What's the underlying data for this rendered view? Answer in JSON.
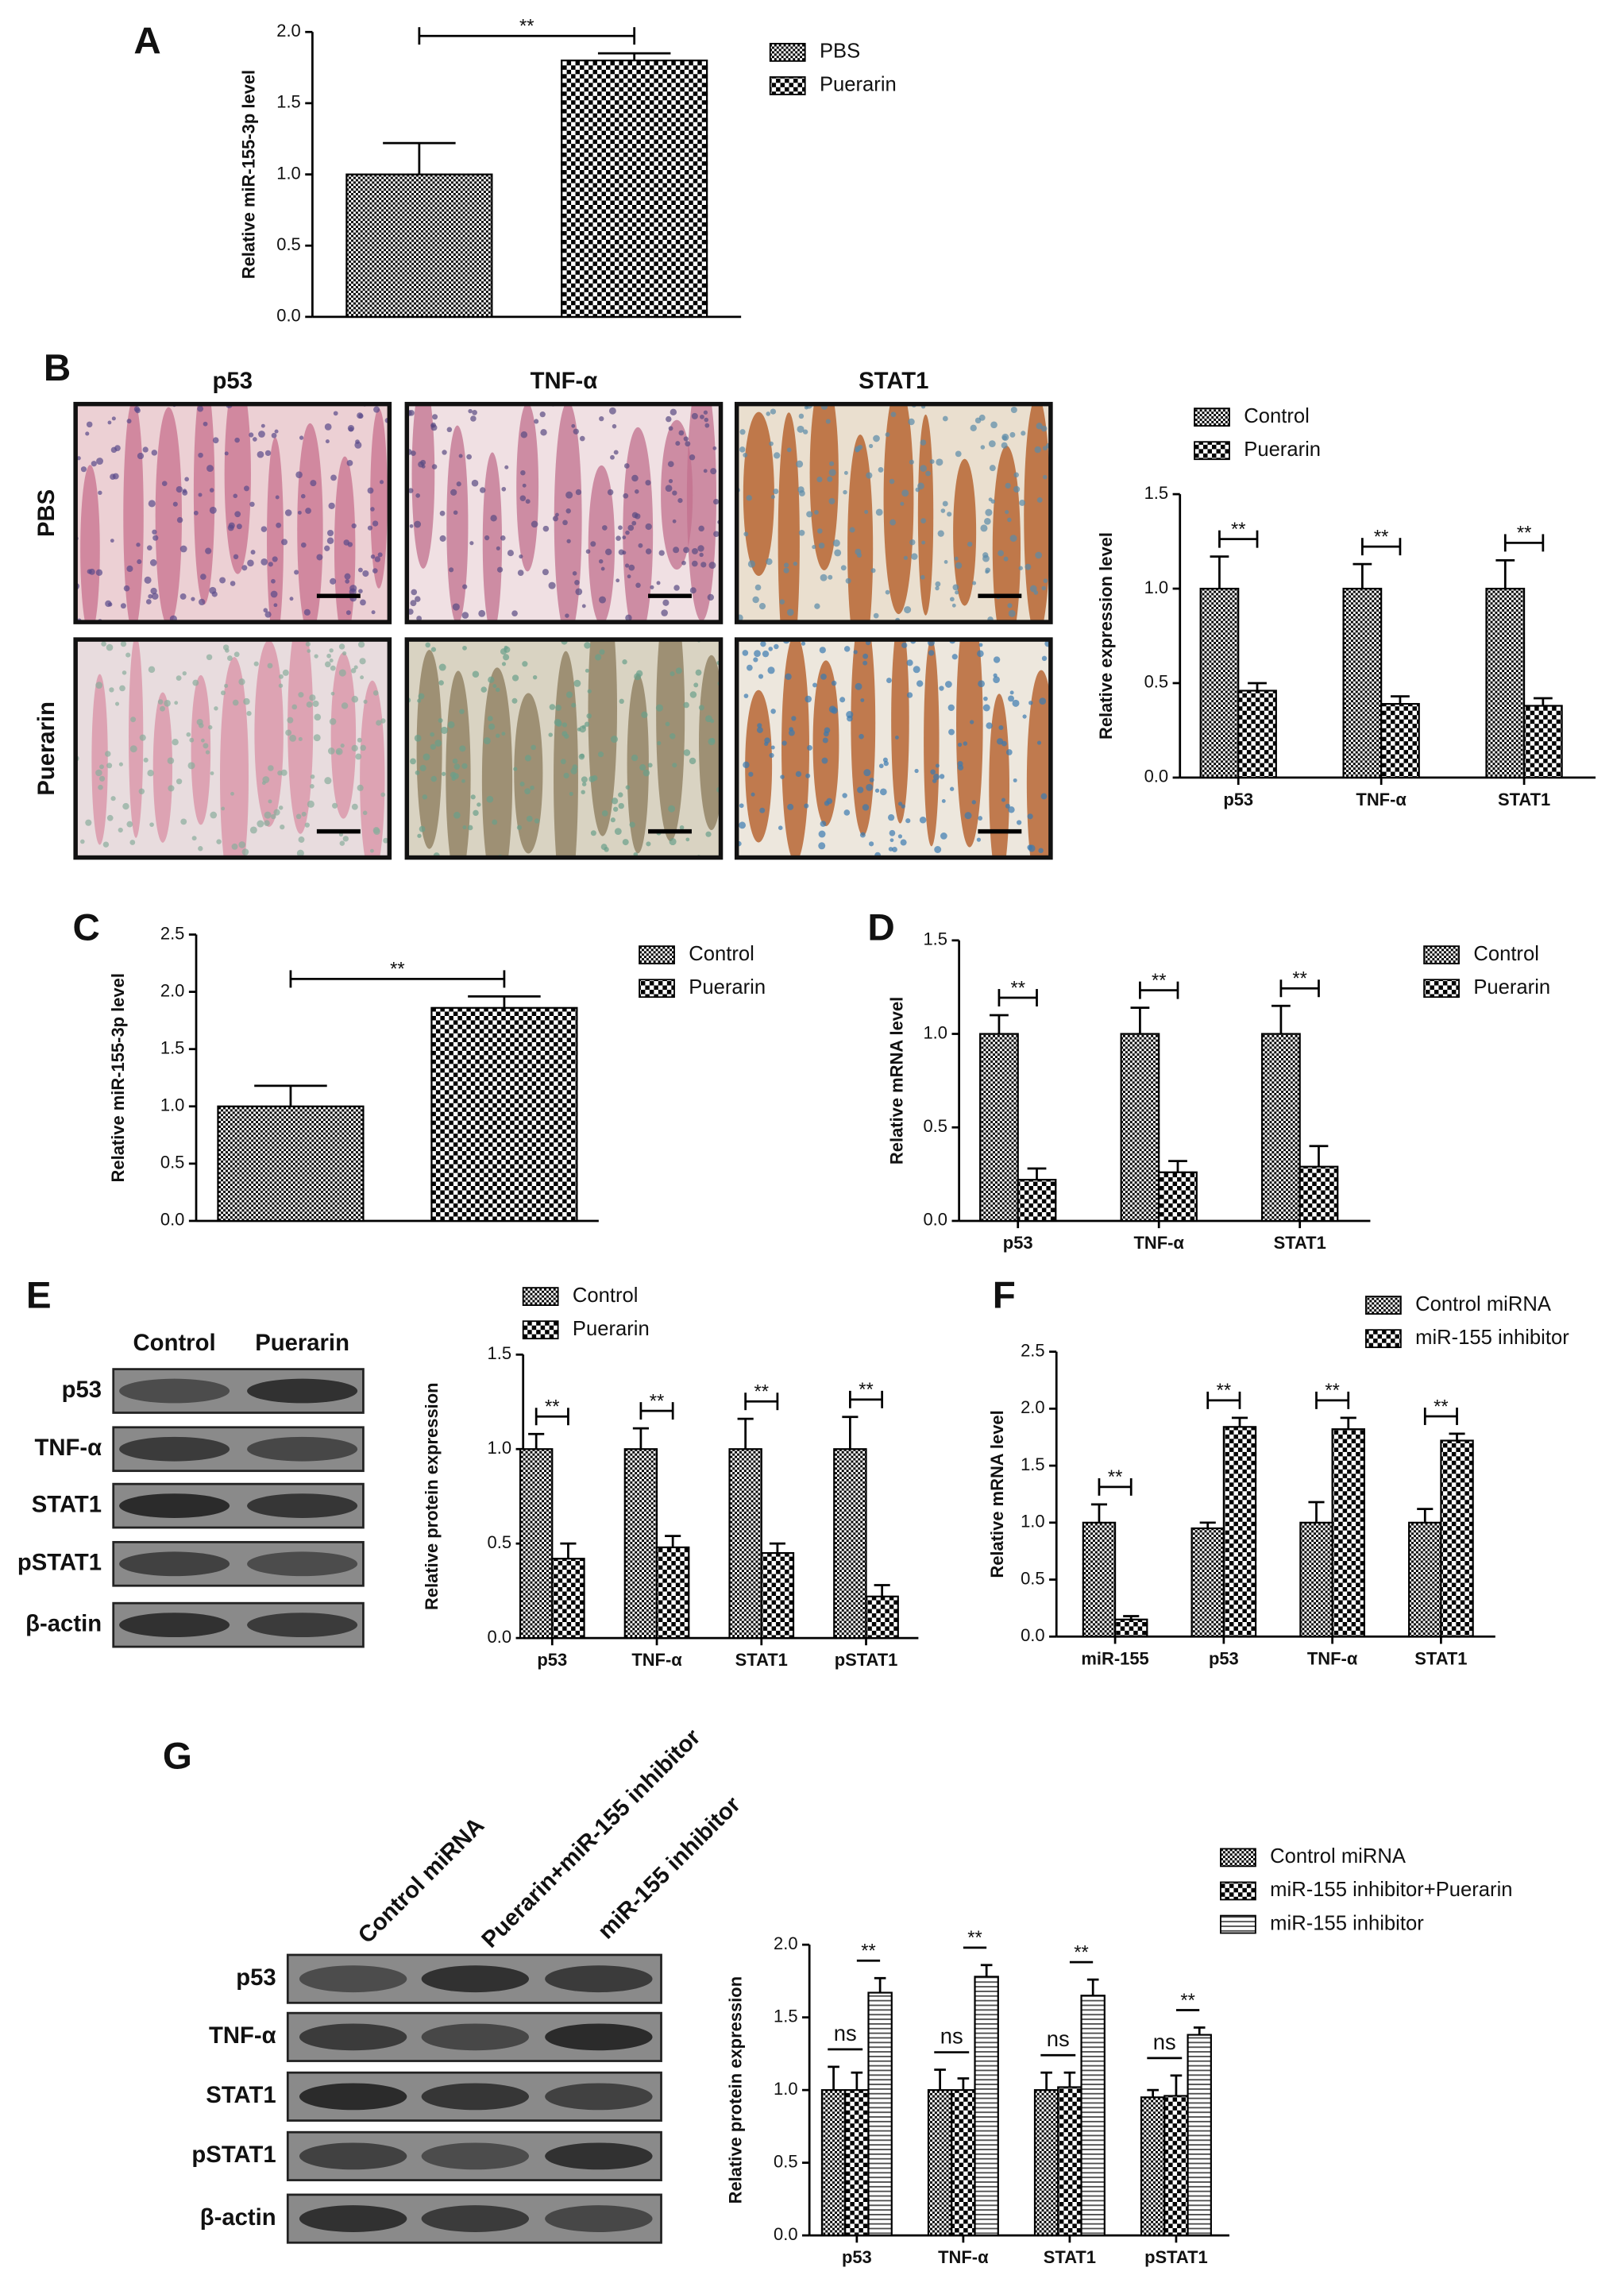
{
  "images": {
    "label": "B",
    "columns": [
      "p53",
      "TNF-α",
      "STAT1"
    ],
    "rows": [
      "PBS",
      "Puerarin"
    ]
  },
  "blot_e": {
    "label": "E",
    "columns": [
      "Control",
      "Puerarin"
    ],
    "rows": [
      "p53",
      "TNF-α",
      "STAT1",
      "pSTAT1",
      "β-actin"
    ]
  },
  "blot_g": {
    "label": "G",
    "columns": [
      "Control miRNA",
      "Puerarin+miR-155 inhibitor",
      "miR-155 inhibitor"
    ],
    "rows": [
      "p53",
      "TNF-α",
      "STAT1",
      "pSTAT1",
      "β-actin"
    ]
  },
  "chart_data": [
    {
      "type": "bar",
      "label": "A",
      "y_label": "Relative miR-155-3p level",
      "categories": [
        null
      ],
      "series": [
        {
          "name": "PBS",
          "color": "#000000",
          "pattern": "checker",
          "values": [
            1.0
          ],
          "errors": [
            0.22
          ]
        },
        {
          "name": "Puerarin",
          "color": "#000000",
          "pattern": "checker-large",
          "values": [
            1.8
          ],
          "errors": [
            0.05
          ]
        }
      ],
      "significance": [
        "**"
      ],
      "ylim": [
        0,
        2
      ],
      "yticks": [
        {
          "value": 0,
          "label": "0.0"
        },
        0.5,
        {
          "value": 1,
          "label": "1.0"
        },
        1.5,
        {
          "value": 2,
          "label": "2.0"
        }
      ],
      "grid": false
    },
    {
      "type": "bar",
      "y_label": "Relative expression level",
      "categories": [
        "p53",
        "TNF-α",
        "STAT1"
      ],
      "series": [
        {
          "name": "Control",
          "color": "#000000",
          "pattern": "checker",
          "values": [
            1.0,
            1.0,
            1.0
          ],
          "errors": [
            0.17,
            0.13,
            0.15
          ]
        },
        {
          "name": "Puerarin",
          "color": "#000000",
          "pattern": "checker-large",
          "values": [
            0.46,
            0.39,
            0.38
          ],
          "errors": [
            0.04,
            0.04,
            0.04
          ]
        }
      ],
      "significance": [
        "**",
        "**",
        "**"
      ],
      "ylim": [
        0,
        1.5
      ],
      "yticks": [
        {
          "value": 0,
          "label": "0.0"
        },
        0.5,
        {
          "value": 1,
          "label": "1.0"
        },
        1.5
      ],
      "grid": false
    },
    {
      "type": "bar",
      "label": "C",
      "y_label": "Relative miR-155-3p level",
      "categories": [
        null
      ],
      "series": [
        {
          "name": "Control",
          "color": "#000000",
          "pattern": "checker",
          "values": [
            1.0
          ],
          "errors": [
            0.18
          ]
        },
        {
          "name": "Puerarin",
          "color": "#000000",
          "pattern": "checker-large",
          "values": [
            1.86
          ],
          "errors": [
            0.1
          ]
        }
      ],
      "significance": [
        "**"
      ],
      "ylim": [
        0,
        2.5
      ],
      "yticks": [
        {
          "value": 0,
          "label": "0.0"
        },
        0.5,
        {
          "value": 1,
          "label": "1.0"
        },
        1.5,
        {
          "value": 2,
          "label": "2.0"
        },
        2.5
      ],
      "grid": false
    },
    {
      "type": "bar",
      "label": "D",
      "y_label": "Relative mRNA level",
      "categories": [
        "p53",
        "TNF-α",
        "STAT1"
      ],
      "series": [
        {
          "name": "Control",
          "color": "#000000",
          "pattern": "checker",
          "values": [
            1.0,
            1.0,
            1.0
          ],
          "errors": [
            0.1,
            0.14,
            0.15
          ]
        },
        {
          "name": "Puerarin",
          "color": "#000000",
          "pattern": "checker-large",
          "values": [
            0.22,
            0.26,
            0.29
          ],
          "errors": [
            0.06,
            0.06,
            0.11
          ]
        }
      ],
      "significance": [
        "**",
        "**",
        "**"
      ],
      "ylim": [
        0,
        1.5
      ],
      "yticks": [
        {
          "value": 0,
          "label": "0.0"
        },
        0.5,
        {
          "value": 1,
          "label": "1.0"
        },
        1.5
      ],
      "grid": false
    },
    {
      "type": "bar",
      "y_label": "Relative protein expression",
      "categories": [
        "p53",
        "TNF-α",
        "STAT1",
        "pSTAT1"
      ],
      "series": [
        {
          "name": "Control",
          "color": "#000000",
          "pattern": "checker",
          "values": [
            1.0,
            1.0,
            1.0,
            1.0
          ],
          "errors": [
            0.08,
            0.11,
            0.16,
            0.17
          ]
        },
        {
          "name": "Puerarin",
          "color": "#000000",
          "pattern": "checker-large",
          "values": [
            0.42,
            0.48,
            0.45,
            0.22
          ],
          "errors": [
            0.08,
            0.06,
            0.05,
            0.06
          ]
        }
      ],
      "significance": [
        "**",
        "**",
        "**",
        "**"
      ],
      "ylim": [
        0,
        1.5
      ],
      "yticks": [
        {
          "value": 0,
          "label": "0.0"
        },
        0.5,
        {
          "value": 1,
          "label": "1.0"
        },
        1.5
      ],
      "grid": false
    },
    {
      "type": "bar",
      "label": "F",
      "y_label": "Relative mRNA level",
      "categories": [
        "miR-155",
        "p53",
        "TNF-α",
        "STAT1"
      ],
      "series": [
        {
          "name": "Control miRNA",
          "color": "#000000",
          "pattern": "checker",
          "values": [
            1.0,
            0.95,
            1.0,
            1.0
          ],
          "errors": [
            0.16,
            0.05,
            0.18,
            0.12
          ]
        },
        {
          "name": "miR-155 inhibitor",
          "color": "#000000",
          "pattern": "checker-large",
          "values": [
            0.15,
            1.84,
            1.82,
            1.72
          ],
          "errors": [
            0.03,
            0.08,
            0.1,
            0.06
          ]
        }
      ],
      "significance": [
        "**",
        "**",
        "**",
        "**"
      ],
      "ylim": [
        0,
        2.5
      ],
      "yticks": [
        {
          "value": 0,
          "label": "0.0"
        },
        0.5,
        {
          "value": 1,
          "label": "1.0"
        },
        1.5,
        {
          "value": 2,
          "label": "2.0"
        },
        2.5
      ],
      "grid": false
    },
    {
      "type": "bar",
      "y_label": "Relative protein expression",
      "categories": [
        "p53",
        "TNF-α",
        "STAT1",
        "pSTAT1"
      ],
      "series": [
        {
          "name": "Control miRNA",
          "color": "#000000",
          "pattern": "checker",
          "values": [
            1.0,
            1.0,
            1.0,
            0.95
          ],
          "errors": [
            0.16,
            0.14,
            0.12,
            0.05
          ]
        },
        {
          "name": "miR-155 inhibitor+Puerarin",
          "color": "#000000",
          "pattern": "checker-large",
          "values": [
            1.0,
            1.0,
            1.02,
            0.96
          ],
          "errors": [
            0.12,
            0.08,
            0.1,
            0.14
          ]
        },
        {
          "name": "miR-155 inhibitor",
          "color": "#000000",
          "pattern": "lines",
          "values": [
            1.67,
            1.78,
            1.65,
            1.38
          ],
          "errors": [
            0.1,
            0.08,
            0.11,
            0.05
          ]
        }
      ],
      "significance": [
        [
          "ns",
          "**"
        ],
        [
          "ns",
          "**"
        ],
        [
          "ns",
          "**"
        ],
        [
          "ns",
          "**"
        ]
      ],
      "ylim": [
        0,
        2
      ],
      "yticks": [
        {
          "value": 0,
          "label": "0.0"
        },
        0.5,
        {
          "value": 1,
          "label": "1.0"
        },
        1.5,
        {
          "value": 2,
          "label": "2.0"
        }
      ],
      "grid": false
    }
  ]
}
